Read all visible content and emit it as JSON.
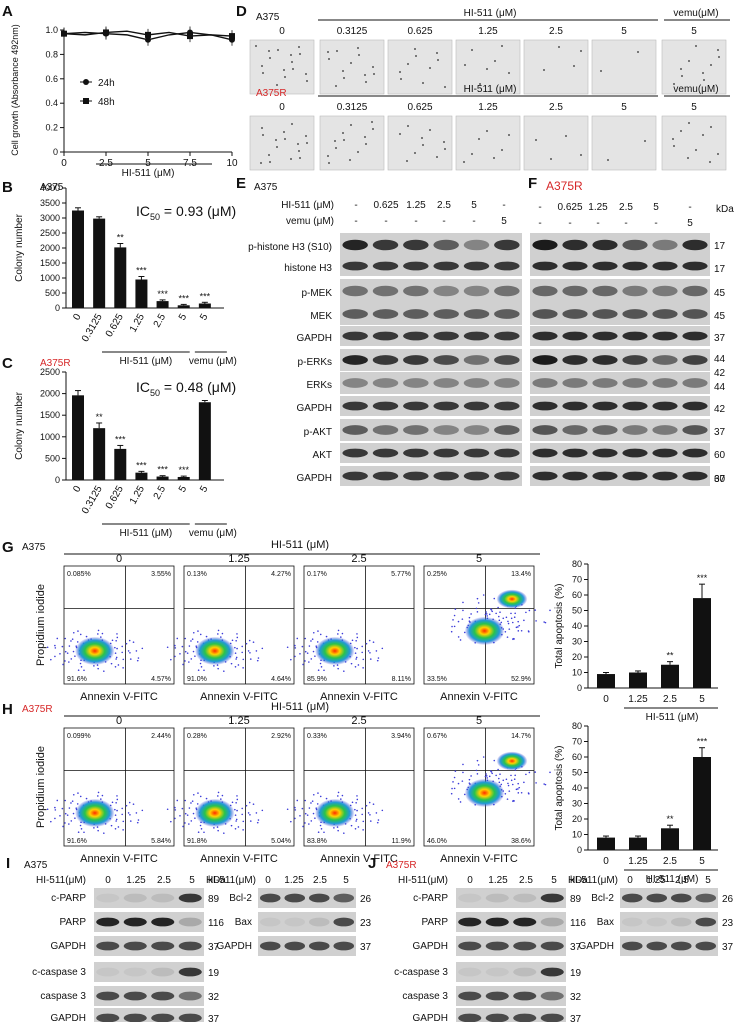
{
  "colors": {
    "accent_red": "#d62728",
    "bar": "#111111"
  },
  "panelA": {
    "letter": "A",
    "ylabel": "Cell growth (Absorbance 492nm)",
    "xlabel": "HI-511 (μM)",
    "yticks": [
      "0",
      "0.2",
      "0.4",
      "0.6",
      "0.8",
      "1.0"
    ],
    "xticks": [
      "0",
      "2.5",
      "5",
      "7.5",
      "10"
    ],
    "legend": [
      "24h",
      "48h"
    ]
  },
  "panelB": {
    "letter": "B",
    "cell": "A375",
    "ic50": "IC",
    "ic50_sub": "50",
    "ic50_val": "= 0.93 (μM)",
    "ylabel": "Colony number",
    "yticks": [
      "0",
      "500",
      "1000",
      "1500",
      "2000",
      "2500",
      "3000",
      "3500",
      "4000"
    ],
    "xticks": [
      "0",
      "0.3125",
      "0.625",
      "1.25",
      "2.5",
      "5",
      "5"
    ],
    "sig": [
      "",
      "",
      "**",
      "***",
      "***",
      "***",
      "***"
    ],
    "group1": "HI-511 (μM)",
    "group2": "vemu (μM)"
  },
  "panelC": {
    "letter": "C",
    "cell": "A375R",
    "ic50": "IC",
    "ic50_sub": "50",
    "ic50_val": "= 0.48 (μM)",
    "ylabel": "Colony number",
    "yticks": [
      "0",
      "500",
      "1000",
      "1500",
      "2000",
      "2500"
    ],
    "xticks": [
      "0",
      "0.3125",
      "0.625",
      "1.25",
      "2.5",
      "5",
      "5"
    ],
    "sig": [
      "",
      "**",
      "***",
      "***",
      "***",
      "***",
      ""
    ],
    "group1": "HI-511 (μM)",
    "group2": "vemu (μM)"
  },
  "panelD": {
    "letter": "D",
    "row1_cell": "A375",
    "row2_cell": "A375R",
    "hi_label": "HI-511 (μM)",
    "vemu_label": "vemu(μM)",
    "doses": [
      "0",
      "0.3125",
      "0.625",
      "1.25",
      "2.5",
      "5",
      "5"
    ]
  },
  "panelE": {
    "letter": "E",
    "cell": "A375",
    "row1_label": "HI-511 (μM)",
    "row2_label": "vemu (μM)",
    "row1": [
      "-",
      "0.625",
      "1.25",
      "2.5",
      "5",
      "-"
    ],
    "row2": [
      "-",
      "-",
      "-",
      "-",
      "-",
      "5"
    ],
    "proteins": [
      "p-histone H3 (S10)",
      "histone H3",
      "p-MEK",
      "MEK",
      "GAPDH",
      "p-ERKs",
      "ERKs",
      "GAPDH",
      "p-AKT",
      "AKT",
      "GAPDH"
    ]
  },
  "panelF": {
    "letter": "F",
    "cell": "A375R",
    "row1": [
      "-",
      "0.625",
      "1.25",
      "2.5",
      "5",
      "-"
    ],
    "row2": [
      "-",
      "-",
      "-",
      "-",
      "-",
      "5"
    ],
    "kda": "kDa",
    "sizes": [
      "17",
      "17",
      "45",
      "45",
      "37",
      "44",
      "42",
      "44",
      "42",
      "37",
      "60",
      "60",
      "37"
    ]
  },
  "panelG": {
    "letter": "G",
    "cell": "A375",
    "title": "HI-511 (μM)",
    "doses": [
      "0",
      "1.25",
      "2.5",
      "5"
    ],
    "ylabel": "Propidium iodide",
    "xlabel": "Annexin V-FITC",
    "quad": [
      [
        "0.085%",
        "3.55%",
        "91.6%",
        "4.57%"
      ],
      [
        "0.13%",
        "4.27%",
        "91.0%",
        "4.64%"
      ],
      [
        "0.17%",
        "5.77%",
        "85.9%",
        "8.11%"
      ],
      [
        "0.25%",
        "13.4%",
        "33.5%",
        "52.9%"
      ]
    ],
    "bar_ylabel": "Total apoptosis (%)",
    "bar_yticks": [
      "0",
      "10",
      "20",
      "30",
      "40",
      "50",
      "60",
      "70",
      "80"
    ],
    "bar_x": [
      "0",
      "1.25",
      "2.5",
      "5"
    ],
    "bar_values": [
      9,
      10,
      15,
      58
    ],
    "bar_err": [
      1,
      1,
      2,
      9
    ],
    "bar_sig": [
      "",
      "",
      "**",
      "***"
    ],
    "bar_group": "HI-511 (μM)"
  },
  "panelH": {
    "letter": "H",
    "cell": "A375R",
    "title": "HI-511 (μM)",
    "doses": [
      "0",
      "1.25",
      "2.5",
      "5"
    ],
    "ylabel": "Propidium iodide",
    "xlabel": "Annexin V-FITC",
    "quad": [
      [
        "0.099%",
        "2.44%",
        "91.6%",
        "5.84%"
      ],
      [
        "0.28%",
        "2.92%",
        "91.8%",
        "5.04%"
      ],
      [
        "0.33%",
        "3.94%",
        "83.8%",
        "11.9%"
      ],
      [
        "0.67%",
        "14.7%",
        "46.0%",
        "38.6%"
      ]
    ],
    "bar_ylabel": "Total apoptosis (%)",
    "bar_yticks": [
      "0",
      "10",
      "20",
      "30",
      "40",
      "50",
      "60",
      "70",
      "80"
    ],
    "bar_x": [
      "0",
      "1.25",
      "2.5",
      "5"
    ],
    "bar_values": [
      8,
      8,
      14,
      60
    ],
    "bar_err": [
      1,
      1,
      2,
      6
    ],
    "bar_sig": [
      "",
      "",
      "**",
      "***"
    ],
    "bar_group": "HI-511 (μM)"
  },
  "panelI": {
    "letter": "I",
    "cell": "A375",
    "dose_label": "HI-511(μM)",
    "doses": [
      "0",
      "1.25",
      "2.5",
      "5"
    ],
    "kda": "kDa",
    "left": [
      [
        "c-PARP",
        "89"
      ],
      [
        "PARP",
        "116"
      ],
      [
        "GAPDH",
        "37"
      ],
      [
        "c-caspase 3",
        "19"
      ],
      [
        "caspase 3",
        "32"
      ],
      [
        "GAPDH",
        "37"
      ]
    ],
    "right": [
      [
        "Bcl-2",
        "26"
      ],
      [
        "Bax",
        "23"
      ],
      [
        "GAPDH",
        "37"
      ]
    ]
  },
  "panelJ": {
    "letter": "J",
    "cell": "A375R",
    "dose_label": "HI-511(μM)",
    "doses": [
      "0",
      "1.25",
      "2.5",
      "5"
    ],
    "kda": "kDa",
    "left": [
      [
        "c-PARP",
        "89"
      ],
      [
        "PARP",
        "116"
      ],
      [
        "GAPDH",
        "37"
      ],
      [
        "c-caspase 3",
        "19"
      ],
      [
        "caspase 3",
        "32"
      ],
      [
        "GAPDH",
        "37"
      ]
    ],
    "right": [
      [
        "Bcl-2",
        "26"
      ],
      [
        "Bax",
        "23"
      ],
      [
        "GAPDH",
        "37"
      ]
    ]
  },
  "chart_data": [
    {
      "type": "line",
      "panel": "A",
      "x": [
        0,
        1.25,
        2.5,
        3.75,
        5,
        6.25,
        7.5,
        8.75,
        10
      ],
      "series": [
        {
          "name": "24h",
          "values": [
            0.97,
            0.98,
            0.97,
            0.96,
            0.92,
            0.96,
            0.98,
            0.96,
            0.92
          ]
        },
        {
          "name": "48h",
          "values": [
            0.97,
            0.96,
            0.98,
            0.99,
            0.96,
            0.98,
            0.95,
            0.96,
            0.95
          ]
        }
      ],
      "ylim": [
        0,
        1.0
      ],
      "xlim": [
        0,
        10
      ]
    },
    {
      "type": "bar",
      "panel": "B",
      "categories": [
        "0",
        "0.3125",
        "0.625",
        "1.25",
        "2.5",
        "5",
        "5"
      ],
      "values": [
        3250,
        2980,
        2020,
        950,
        230,
        90,
        150
      ],
      "errors": [
        90,
        60,
        130,
        100,
        40,
        30,
        40
      ],
      "ylim": [
        0,
        4000
      ]
    },
    {
      "type": "bar",
      "panel": "C",
      "categories": [
        "0",
        "0.3125",
        "0.625",
        "1.25",
        "2.5",
        "5",
        "5"
      ],
      "values": [
        1960,
        1200,
        720,
        170,
        80,
        70,
        1800
      ],
      "errors": [
        110,
        120,
        80,
        30,
        20,
        20,
        40
      ],
      "ylim": [
        0,
        2500
      ]
    },
    {
      "type": "bar",
      "panel": "G",
      "categories": [
        "0",
        "1.25",
        "2.5",
        "5"
      ],
      "values": [
        9,
        10,
        15,
        58
      ],
      "ylim": [
        0,
        80
      ]
    },
    {
      "type": "bar",
      "panel": "H",
      "categories": [
        "0",
        "1.25",
        "2.5",
        "5"
      ],
      "values": [
        8,
        8,
        14,
        60
      ],
      "ylim": [
        0,
        80
      ]
    }
  ]
}
